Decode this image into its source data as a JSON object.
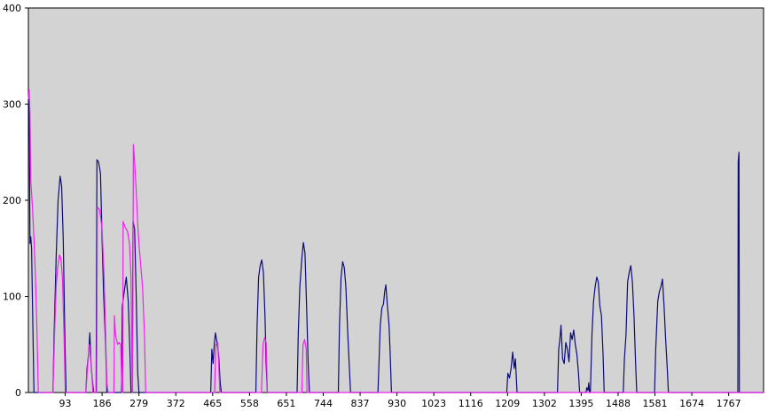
{
  "chart_data": {
    "type": "line",
    "title": "",
    "xlabel": "",
    "ylabel": "",
    "xlim": [
      0,
      1855
    ],
    "ylim": [
      0,
      400
    ],
    "x_ticks": [
      93,
      186,
      279,
      372,
      465,
      558,
      651,
      744,
      837,
      930,
      1023,
      1116,
      1209,
      1302,
      1395,
      1488,
      1581,
      1674,
      1767
    ],
    "y_ticks": [
      0,
      100,
      200,
      300,
      400
    ],
    "grid": false,
    "legend": "none",
    "plot_background": "#d3d3d3",
    "series": [
      {
        "color": "#0b0b7a",
        "points": [
          [
            0,
            300
          ],
          [
            2,
            305
          ],
          [
            4,
            155
          ],
          [
            6,
            162
          ],
          [
            8,
            150
          ],
          [
            12,
            50
          ],
          [
            14,
            0
          ],
          [
            62,
            0
          ],
          [
            65,
            60
          ],
          [
            70,
            140
          ],
          [
            75,
            200
          ],
          [
            80,
            225
          ],
          [
            84,
            215
          ],
          [
            88,
            160
          ],
          [
            92,
            60
          ],
          [
            95,
            0
          ],
          [
            145,
            0
          ],
          [
            148,
            25
          ],
          [
            152,
            40
          ],
          [
            155,
            62
          ],
          [
            158,
            30
          ],
          [
            162,
            10
          ],
          [
            165,
            0
          ],
          [
            171,
            0
          ],
          [
            173,
            242
          ],
          [
            177,
            240
          ],
          [
            182,
            228
          ],
          [
            186,
            160
          ],
          [
            190,
            100
          ],
          [
            195,
            50
          ],
          [
            198,
            0
          ],
          [
            235,
            0
          ],
          [
            237,
            90
          ],
          [
            242,
            105
          ],
          [
            247,
            120
          ],
          [
            252,
            95
          ],
          [
            256,
            45
          ],
          [
            259,
            0
          ],
          [
            262,
            0
          ],
          [
            264,
            178
          ],
          [
            268,
            170
          ],
          [
            272,
            100
          ],
          [
            276,
            20
          ],
          [
            279,
            0
          ],
          [
            460,
            0
          ],
          [
            463,
            45
          ],
          [
            466,
            30
          ],
          [
            469,
            50
          ],
          [
            472,
            62
          ],
          [
            476,
            52
          ],
          [
            480,
            40
          ],
          [
            484,
            10
          ],
          [
            487,
            0
          ],
          [
            574,
            0
          ],
          [
            577,
            70
          ],
          [
            581,
            120
          ],
          [
            585,
            132
          ],
          [
            589,
            138
          ],
          [
            593,
            125
          ],
          [
            597,
            80
          ],
          [
            600,
            30
          ],
          [
            603,
            0
          ],
          [
            678,
            0
          ],
          [
            681,
            60
          ],
          [
            685,
            110
          ],
          [
            690,
            140
          ],
          [
            694,
            156
          ],
          [
            698,
            145
          ],
          [
            702,
            90
          ],
          [
            706,
            30
          ],
          [
            709,
            0
          ],
          [
            782,
            0
          ],
          [
            785,
            70
          ],
          [
            789,
            120
          ],
          [
            793,
            136
          ],
          [
            797,
            130
          ],
          [
            801,
            110
          ],
          [
            806,
            60
          ],
          [
            810,
            25
          ],
          [
            813,
            0
          ],
          [
            882,
            0
          ],
          [
            885,
            35
          ],
          [
            888,
            70
          ],
          [
            892,
            88
          ],
          [
            896,
            92
          ],
          [
            899,
            105
          ],
          [
            902,
            112
          ],
          [
            906,
            90
          ],
          [
            910,
            70
          ],
          [
            913,
            40
          ],
          [
            916,
            0
          ],
          [
            1207,
            0
          ],
          [
            1210,
            20
          ],
          [
            1214,
            15
          ],
          [
            1218,
            25
          ],
          [
            1222,
            42
          ],
          [
            1226,
            25
          ],
          [
            1229,
            35
          ],
          [
            1233,
            0
          ],
          [
            1335,
            0
          ],
          [
            1338,
            45
          ],
          [
            1341,
            55
          ],
          [
            1344,
            70
          ],
          [
            1348,
            35
          ],
          [
            1352,
            30
          ],
          [
            1356,
            52
          ],
          [
            1360,
            45
          ],
          [
            1364,
            32
          ],
          [
            1368,
            62
          ],
          [
            1372,
            55
          ],
          [
            1376,
            65
          ],
          [
            1380,
            50
          ],
          [
            1384,
            40
          ],
          [
            1388,
            20
          ],
          [
            1391,
            0
          ],
          [
            1407,
            0
          ],
          [
            1409,
            5
          ],
          [
            1412,
            2
          ],
          [
            1414,
            10
          ],
          [
            1416,
            0
          ],
          [
            1418,
            0
          ],
          [
            1422,
            60
          ],
          [
            1426,
            95
          ],
          [
            1430,
            110
          ],
          [
            1434,
            120
          ],
          [
            1438,
            115
          ],
          [
            1442,
            90
          ],
          [
            1446,
            80
          ],
          [
            1450,
            40
          ],
          [
            1453,
            0
          ],
          [
            1501,
            0
          ],
          [
            1504,
            35
          ],
          [
            1508,
            60
          ],
          [
            1512,
            115
          ],
          [
            1516,
            125
          ],
          [
            1520,
            132
          ],
          [
            1524,
            115
          ],
          [
            1528,
            80
          ],
          [
            1532,
            30
          ],
          [
            1535,
            0
          ],
          [
            1580,
            0
          ],
          [
            1583,
            45
          ],
          [
            1588,
            95
          ],
          [
            1592,
            105
          ],
          [
            1596,
            110
          ],
          [
            1600,
            118
          ],
          [
            1604,
            90
          ],
          [
            1608,
            55
          ],
          [
            1612,
            25
          ],
          [
            1615,
            0
          ],
          [
            1790,
            0
          ],
          [
            1791,
            240
          ],
          [
            1793,
            250
          ],
          [
            1794,
            0
          ],
          [
            1855,
            0
          ]
        ]
      },
      {
        "color": "#ee22ee",
        "points": [
          [
            0,
            305
          ],
          [
            2,
            315
          ],
          [
            4,
            290
          ],
          [
            6,
            220
          ],
          [
            10,
            195
          ],
          [
            14,
            160
          ],
          [
            18,
            120
          ],
          [
            22,
            60
          ],
          [
            25,
            0
          ],
          [
            62,
            0
          ],
          [
            66,
            60
          ],
          [
            70,
            110
          ],
          [
            74,
            130
          ],
          [
            78,
            143
          ],
          [
            82,
            140
          ],
          [
            86,
            120
          ],
          [
            90,
            60
          ],
          [
            93,
            0
          ],
          [
            145,
            0
          ],
          [
            150,
            30
          ],
          [
            154,
            50
          ],
          [
            157,
            35
          ],
          [
            160,
            20
          ],
          [
            163,
            0
          ],
          [
            172,
            0
          ],
          [
            174,
            193
          ],
          [
            180,
            190
          ],
          [
            186,
            170
          ],
          [
            191,
            120
          ],
          [
            195,
            60
          ],
          [
            198,
            10
          ],
          [
            201,
            0
          ],
          [
            216,
            0
          ],
          [
            217,
            80
          ],
          [
            220,
            60
          ],
          [
            225,
            50
          ],
          [
            229,
            52
          ],
          [
            233,
            50
          ],
          [
            236,
            0
          ],
          [
            238,
            0
          ],
          [
            239,
            178
          ],
          [
            244,
            172
          ],
          [
            250,
            168
          ],
          [
            255,
            155
          ],
          [
            259,
            120
          ],
          [
            262,
            0
          ],
          [
            263,
            0
          ],
          [
            265,
            258
          ],
          [
            268,
            240
          ],
          [
            272,
            210
          ],
          [
            276,
            175
          ],
          [
            280,
            150
          ],
          [
            284,
            130
          ],
          [
            288,
            110
          ],
          [
            293,
            60
          ],
          [
            296,
            0
          ],
          [
            470,
            0
          ],
          [
            473,
            50
          ],
          [
            478,
            52
          ],
          [
            481,
            20
          ],
          [
            483,
            0
          ],
          [
            588,
            0
          ],
          [
            592,
            50
          ],
          [
            596,
            57
          ],
          [
            600,
            52
          ],
          [
            603,
            0
          ],
          [
            690,
            0
          ],
          [
            693,
            50
          ],
          [
            697,
            55
          ],
          [
            701,
            45
          ],
          [
            703,
            0
          ],
          [
            1855,
            0
          ]
        ]
      }
    ]
  }
}
